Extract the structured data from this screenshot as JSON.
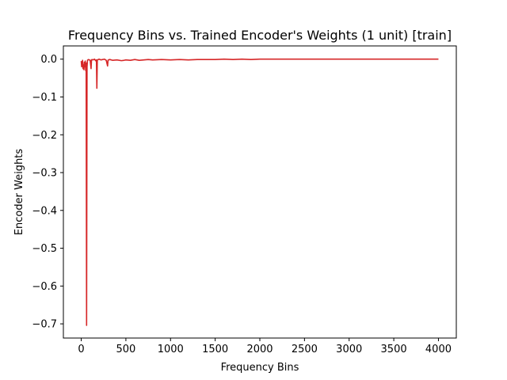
{
  "chart_data": {
    "type": "line",
    "title": "Frequency Bins vs. Trained Encoder's Weights (1 unit) [train]",
    "xlabel": "Frequency Bins",
    "ylabel": "Encoder Weights",
    "xlim": [
      -200,
      4200
    ],
    "ylim": [
      -0.7375,
      0.035
    ],
    "xticks": [
      0,
      500,
      1000,
      1500,
      2000,
      2500,
      3000,
      3500,
      4000
    ],
    "yticks": [
      0.0,
      -0.1,
      -0.2,
      -0.3,
      -0.4,
      -0.5,
      -0.6,
      -0.7
    ],
    "xtick_labels": [
      "0",
      "500",
      "1000",
      "1500",
      "2000",
      "2500",
      "3000",
      "3500",
      "4000"
    ],
    "ytick_labels": [
      "0.0",
      "−0.1",
      "−0.2",
      "−0.3",
      "−0.4",
      "−0.5",
      "−0.6",
      "−0.7"
    ],
    "grid": false,
    "series": [
      {
        "color": "#d62728",
        "x": [
          0,
          5,
          10,
          15,
          20,
          25,
          30,
          35,
          40,
          45,
          50,
          55,
          60,
          65,
          70,
          80,
          90,
          100,
          110,
          115,
          120,
          130,
          140,
          150,
          160,
          170,
          175,
          180,
          190,
          200,
          220,
          240,
          260,
          280,
          295,
          300,
          305,
          320,
          350,
          400,
          450,
          480,
          500,
          550,
          600,
          650,
          700,
          750,
          800,
          900,
          1000,
          1100,
          1200,
          1300,
          1400,
          1500,
          1600,
          1700,
          1800,
          1900,
          2000,
          2200,
          2400,
          2600,
          2800,
          3000,
          3200,
          3400,
          3600,
          3800,
          4000
        ],
        "y": [
          -0.005,
          -0.02,
          -0.01,
          -0.003,
          -0.025,
          -0.015,
          -0.028,
          -0.008,
          -0.02,
          -0.005,
          -0.03,
          -0.01,
          -0.704,
          -0.02,
          -0.003,
          -0.001,
          -0.002,
          -0.003,
          -0.025,
          -0.002,
          -0.001,
          -0.002,
          -0.001,
          0.0,
          -0.004,
          -0.002,
          -0.077,
          -0.002,
          -0.001,
          0.0,
          -0.002,
          -0.001,
          0.0,
          -0.003,
          -0.018,
          -0.003,
          -0.002,
          -0.001,
          -0.003,
          -0.002,
          -0.004,
          -0.003,
          -0.002,
          -0.003,
          -0.001,
          -0.003,
          -0.002,
          -0.001,
          -0.002,
          -0.001,
          -0.002,
          -0.001,
          -0.002,
          -0.001,
          -0.001,
          -0.001,
          0.0,
          -0.001,
          0.0,
          -0.001,
          0.0,
          0.0,
          0.0,
          0.0,
          0.0,
          0.0,
          0.0,
          0.0,
          0.0,
          0.0,
          0.0
        ]
      }
    ]
  }
}
